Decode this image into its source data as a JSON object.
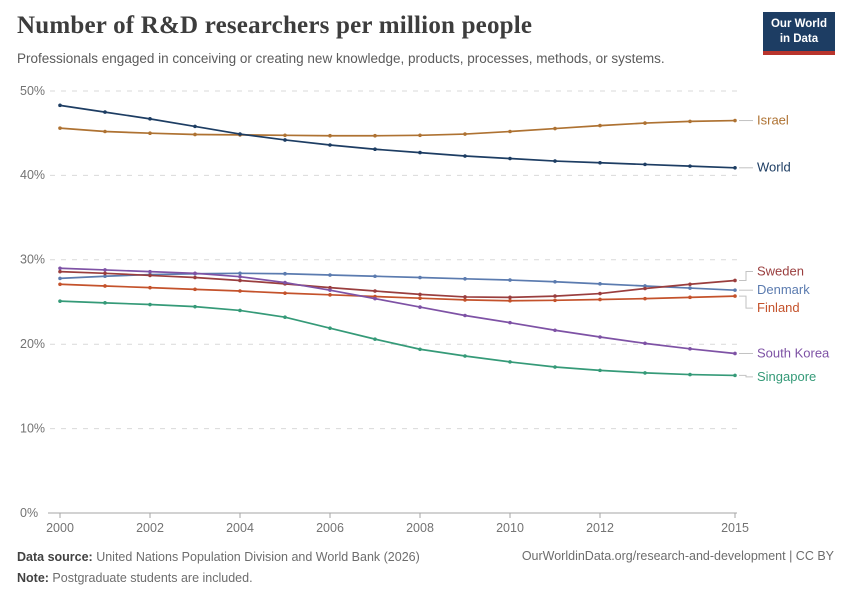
{
  "header": {
    "logo": {
      "line1": "Our World",
      "line2": "in Data",
      "bg_color": "#1D3D63",
      "bar_color": "#B8342C"
    }
  },
  "footer": {
    "data_source_label": "Data source:",
    "data_source_text": " United Nations Population Division and World Bank (2026)",
    "note_label": "Note:",
    "note_text": " Postgraduate students are included.",
    "link": "OurWorldinData.org/research-and-development | CC BY"
  },
  "colors": {
    "grid": "#d9d9d9",
    "axis": "#a6a6a6",
    "tick_text": "#737373",
    "connector": "#c2c2c2"
  },
  "chart_data": {
    "type": "line",
    "title": "Number of R&D researchers per million people",
    "subtitle": "Professionals engaged in conceiving or creating new knowledge, products, processes, methods, or systems.",
    "xlabel": "",
    "ylabel": "",
    "xlim": [
      2000,
      2015
    ],
    "ylim": [
      0,
      50
    ],
    "y_unit": "%",
    "grid": "horizontal-dashed",
    "legend_position": "right-end-labels",
    "x": [
      2000,
      2001,
      2002,
      2003,
      2004,
      2005,
      2006,
      2007,
      2008,
      2009,
      2010,
      2011,
      2012,
      2013,
      2014,
      2015
    ],
    "x_ticks": [
      2000,
      2002,
      2004,
      2006,
      2008,
      2010,
      2012,
      2015
    ],
    "y_ticks": [
      0,
      10,
      20,
      30,
      40,
      50
    ],
    "series": [
      {
        "name": "Israel",
        "color": "#AE7232",
        "values": [
          45.6,
          45.2,
          45.0,
          44.85,
          44.8,
          44.75,
          44.7,
          44.7,
          44.75,
          44.9,
          45.2,
          45.55,
          45.9,
          46.2,
          46.4,
          46.5
        ]
      },
      {
        "name": "World",
        "color": "#1D3D63",
        "values": [
          48.3,
          47.5,
          46.7,
          45.8,
          44.9,
          44.2,
          43.6,
          43.1,
          42.7,
          42.3,
          42.0,
          41.7,
          41.5,
          41.3,
          41.1,
          40.9
        ]
      },
      {
        "name": "Denmark",
        "color": "#5B7BAF",
        "values": [
          27.8,
          28.05,
          28.25,
          28.35,
          28.4,
          28.35,
          28.2,
          28.05,
          27.9,
          27.75,
          27.6,
          27.4,
          27.15,
          26.9,
          26.65,
          26.4
        ]
      },
      {
        "name": "Finland",
        "color": "#C4522B",
        "values": [
          27.1,
          26.9,
          26.7,
          26.5,
          26.3,
          26.05,
          25.85,
          25.65,
          25.45,
          25.25,
          25.15,
          25.2,
          25.3,
          25.4,
          25.55,
          25.7
        ]
      },
      {
        "name": "Sweden",
        "color": "#9A3E3E",
        "values": [
          28.6,
          28.4,
          28.15,
          27.9,
          27.55,
          27.15,
          26.7,
          26.3,
          25.9,
          25.6,
          25.55,
          25.7,
          26.0,
          26.6,
          27.1,
          27.55
        ]
      },
      {
        "name": "South Korea",
        "color": "#7E52A5",
        "values": [
          29.0,
          28.8,
          28.6,
          28.4,
          28.0,
          27.3,
          26.4,
          25.4,
          24.4,
          23.4,
          22.55,
          21.65,
          20.85,
          20.1,
          19.45,
          18.9
        ]
      },
      {
        "name": "Singapore",
        "color": "#359A78",
        "values": [
          25.1,
          24.9,
          24.7,
          24.45,
          24.0,
          23.2,
          21.9,
          20.6,
          19.4,
          18.6,
          17.9,
          17.3,
          16.9,
          16.6,
          16.4,
          16.3
        ]
      }
    ]
  }
}
